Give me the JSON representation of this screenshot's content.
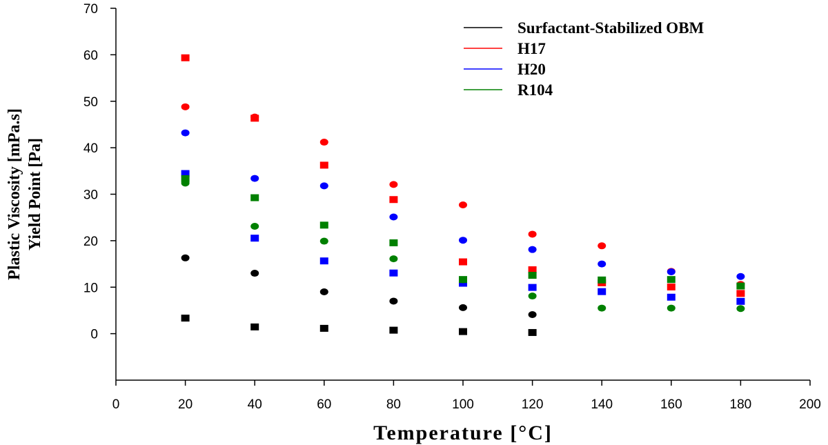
{
  "chart_data": {
    "type": "scatter",
    "xlabel": "Temperature [°C]",
    "ylabel_lines": [
      "Plastic Viscosity [mPa.s]",
      "Yield Point [Pa]"
    ],
    "xlim": [
      0,
      200
    ],
    "ylim": [
      -10,
      70
    ],
    "xticks": [
      0,
      20,
      40,
      60,
      80,
      100,
      120,
      140,
      160,
      180,
      200
    ],
    "yticks": [
      0,
      10,
      20,
      30,
      40,
      50,
      60,
      70
    ],
    "grid": false,
    "legend_position": "top-right",
    "legend": [
      {
        "name": "Surfactant-Stabilized OBM",
        "color": "#000000"
      },
      {
        "name": "H17",
        "color": "#ff0000"
      },
      {
        "name": "H20",
        "color": "#0000ff"
      },
      {
        "name": "R104",
        "color": "#008000"
      }
    ],
    "series": [
      {
        "name": "Surfactant-Stabilized OBM",
        "marker": "square",
        "color": "#000000",
        "points": [
          [
            20,
            3.2
          ],
          [
            40,
            1.3
          ],
          [
            60,
            1.0
          ],
          [
            80,
            0.6
          ],
          [
            100,
            0.3
          ],
          [
            120,
            0.1
          ]
        ]
      },
      {
        "name": "Surfactant-Stabilized OBM",
        "marker": "circle",
        "color": "#000000",
        "points": [
          [
            20,
            16.3
          ],
          [
            40,
            13.0
          ],
          [
            60,
            9.0
          ],
          [
            80,
            7.0
          ],
          [
            100,
            5.6
          ],
          [
            120,
            4.1
          ]
        ]
      },
      {
        "name": "H17",
        "marker": "square",
        "color": "#ff0000",
        "points": [
          [
            20,
            59.2
          ],
          [
            40,
            46.2
          ],
          [
            60,
            36.1
          ],
          [
            80,
            28.7
          ],
          [
            100,
            15.3
          ],
          [
            120,
            13.6
          ],
          [
            140,
            10.8
          ],
          [
            160,
            9.9
          ],
          [
            180,
            8.5
          ]
        ]
      },
      {
        "name": "H17",
        "marker": "circle",
        "color": "#ff0000",
        "points": [
          [
            20,
            48.8
          ],
          [
            40,
            46.6
          ],
          [
            60,
            41.2
          ],
          [
            80,
            32.1
          ],
          [
            100,
            27.7
          ],
          [
            120,
            21.4
          ],
          [
            140,
            18.9
          ],
          [
            160,
            13.4
          ],
          [
            180,
            10.6
          ]
        ]
      },
      {
        "name": "H20",
        "marker": "square",
        "color": "#0000ff",
        "points": [
          [
            20,
            34.3
          ],
          [
            40,
            20.4
          ],
          [
            60,
            15.5
          ],
          [
            80,
            12.9
          ],
          [
            100,
            10.7
          ],
          [
            120,
            9.8
          ],
          [
            140,
            8.9
          ],
          [
            160,
            7.7
          ],
          [
            180,
            6.8
          ]
        ]
      },
      {
        "name": "H20",
        "marker": "circle",
        "color": "#0000ff",
        "points": [
          [
            20,
            43.2
          ],
          [
            40,
            33.4
          ],
          [
            60,
            31.8
          ],
          [
            80,
            25.1
          ],
          [
            100,
            20.1
          ],
          [
            120,
            18.1
          ],
          [
            140,
            15.0
          ],
          [
            160,
            13.3
          ],
          [
            180,
            12.3
          ]
        ]
      },
      {
        "name": "R104",
        "marker": "square",
        "color": "#008000",
        "points": [
          [
            20,
            33.2
          ],
          [
            40,
            29.1
          ],
          [
            60,
            23.2
          ],
          [
            80,
            19.4
          ],
          [
            100,
            11.5
          ],
          [
            120,
            12.4
          ],
          [
            140,
            11.4
          ],
          [
            160,
            11.5
          ],
          [
            180,
            10.1
          ]
        ]
      },
      {
        "name": "R104",
        "marker": "circle",
        "color": "#008000",
        "points": [
          [
            20,
            32.4
          ],
          [
            40,
            23.1
          ],
          [
            60,
            19.9
          ],
          [
            80,
            16.1
          ],
          [
            100,
            11.6
          ],
          [
            120,
            8.1
          ],
          [
            140,
            5.5
          ],
          [
            160,
            5.5
          ],
          [
            180,
            5.4
          ]
        ]
      }
    ]
  }
}
